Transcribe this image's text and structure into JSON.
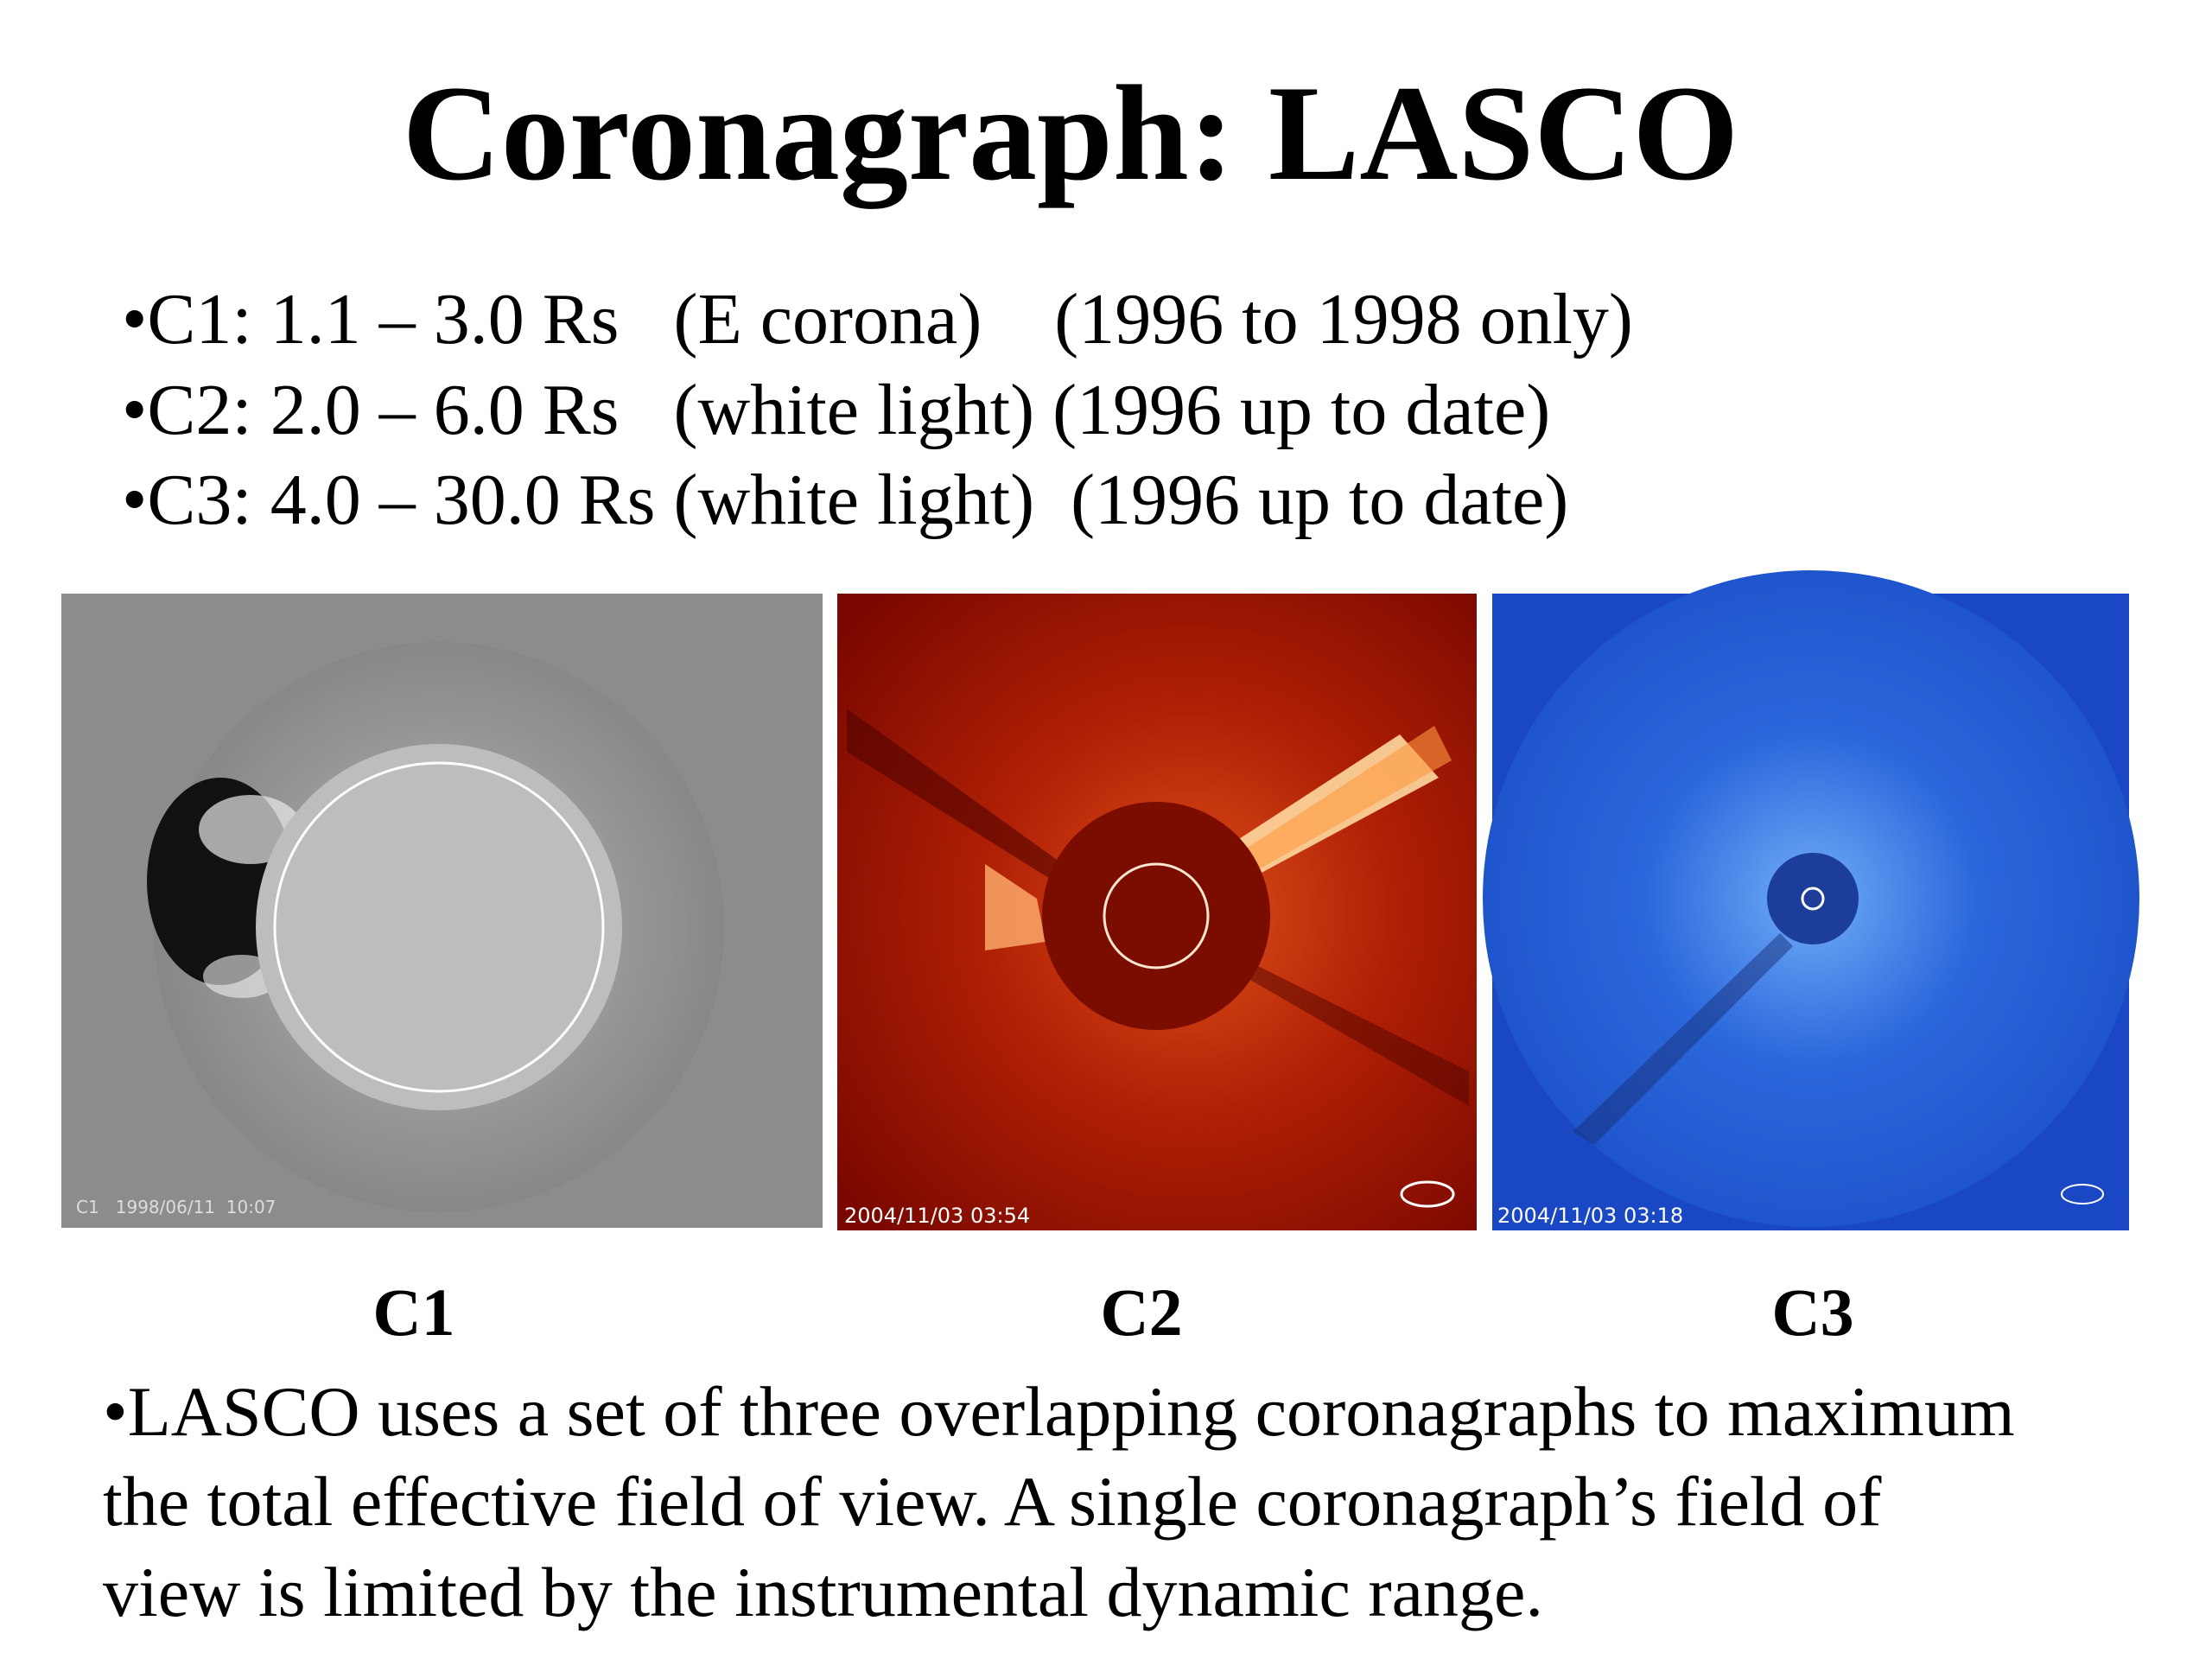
{
  "title": "Coronagraph: LASCO",
  "bullets": [
    "•C1: 1.1 – 3.0 Rs   (E corona)    (1996 to 1998 only)",
    "•C2: 2.0 – 6.0 Rs   (white light) (1996 up to date)",
    "•C3: 4.0 – 30.0 Rs (white light)  (1996 up to date)"
  ],
  "panels": [
    {
      "label": "C1",
      "timestamp": "C1   1998/06/11  10:07"
    },
    {
      "label": "C2",
      "timestamp": "2004/11/03 03:54"
    },
    {
      "label": "C3",
      "timestamp": "2004/11/03 03:18"
    }
  ],
  "footer": [
    "•LASCO uses a set of three overlapping coronagraphs to maximum",
    "the total effective field of view. A single coronagraph’s field of",
    "view is limited by the instrumental dynamic range."
  ]
}
